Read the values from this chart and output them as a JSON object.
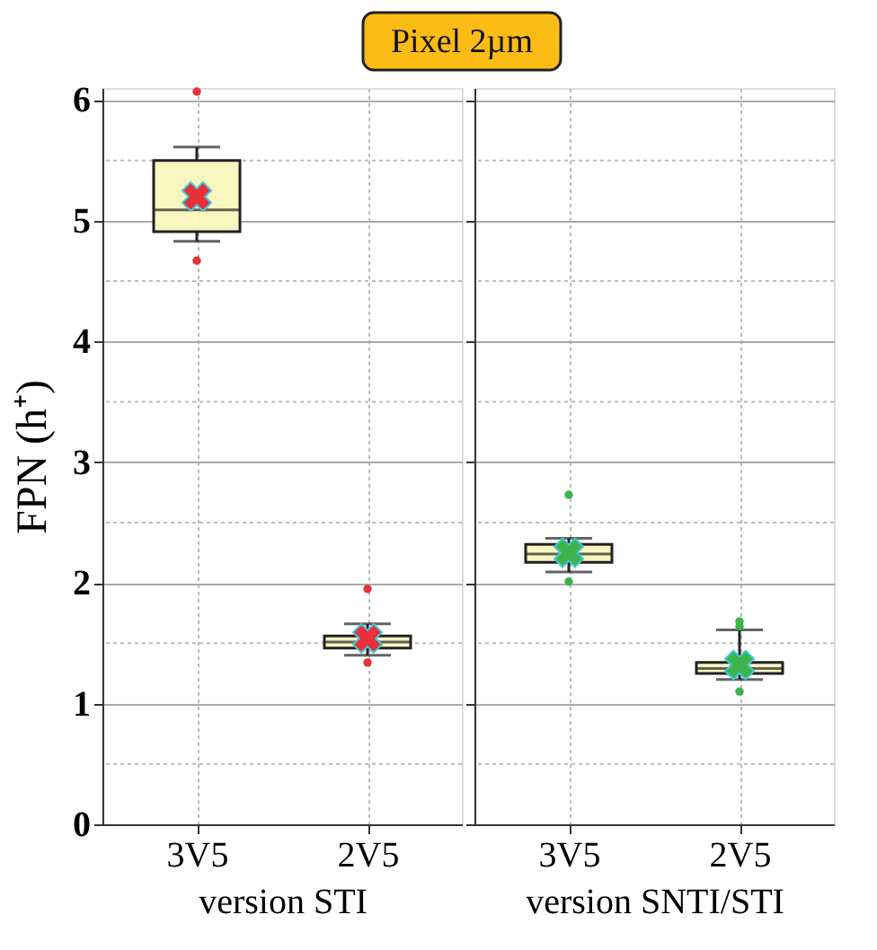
{
  "chart_data": [
    {
      "type": "box",
      "title": "Pixel 2µm",
      "ylabel": "FPN (h⁺)",
      "xlabel": "version STI",
      "categories": [
        "3V5",
        "2V5"
      ],
      "series": [
        {
          "type": "box",
          "color": "#faf6c0",
          "boxes": [
            {
              "low": 4.83,
              "q1": 4.91,
              "median": 5.09,
              "q3": 5.5,
              "high": 5.61
            },
            {
              "low": 1.4,
              "q1": 1.46,
              "median": 1.51,
              "q3": 1.56,
              "high": 1.66
            }
          ]
        },
        {
          "type": "scatter",
          "marker": "cross",
          "color": "#e8303a",
          "x": [
            "3V5",
            "2V5"
          ],
          "values": [
            5.2,
            1.54
          ]
        },
        {
          "type": "scatter",
          "marker": "circle",
          "color": "#e8303a",
          "x": [
            "3V5",
            "3V5",
            "2V5",
            "2V5"
          ],
          "values": [
            6.07,
            4.67,
            1.95,
            1.34
          ]
        }
      ],
      "ylim": [
        0,
        6.1
      ],
      "yticks": [
        0,
        {
          "value": 0.5,
          "label": null
        },
        1,
        {
          "value": 1.5,
          "label": null
        },
        2,
        {
          "value": 2.5,
          "label": null
        },
        3,
        {
          "value": 3.5,
          "label": null
        },
        4,
        {
          "value": 4.5,
          "label": null
        },
        5,
        {
          "value": 5.5,
          "label": null
        },
        6
      ],
      "grid": true
    },
    {
      "type": "box",
      "xlabel": "version SNTI/STI",
      "categories": [
        "3V5",
        "2V5"
      ],
      "series": [
        {
          "type": "box",
          "color": "#faf6c0",
          "boxes": [
            {
              "low": 2.09,
              "q1": 2.17,
              "median": 2.24,
              "q3": 2.32,
              "high": 2.37
            },
            {
              "low": 1.2,
              "q1": 1.25,
              "median": 1.29,
              "q3": 1.34,
              "high": 1.61
            }
          ]
        },
        {
          "type": "scatter",
          "marker": "cross",
          "color": "#3cb44b",
          "x": [
            "3V5",
            "2V5"
          ],
          "values": [
            2.25,
            1.32
          ]
        },
        {
          "type": "scatter",
          "marker": "circle",
          "color": "#3cb44b",
          "x": [
            "3V5",
            "3V5",
            "2V5",
            "2V5",
            "2V5"
          ],
          "values": [
            2.73,
            2.01,
            1.68,
            1.64,
            1.1
          ]
        }
      ],
      "ylim": [
        0,
        6.1
      ],
      "yticks": [
        0,
        {
          "value": 0.5,
          "label": null
        },
        1,
        {
          "value": 1.5,
          "label": null
        },
        2,
        {
          "value": 2.5,
          "label": null
        },
        3,
        {
          "value": 3.5,
          "label": null
        },
        4,
        {
          "value": 4.5,
          "label": null
        },
        5,
        {
          "value": 5.5,
          "label": null
        },
        6
      ],
      "tick_labels": "x",
      "grid": true
    }
  ]
}
